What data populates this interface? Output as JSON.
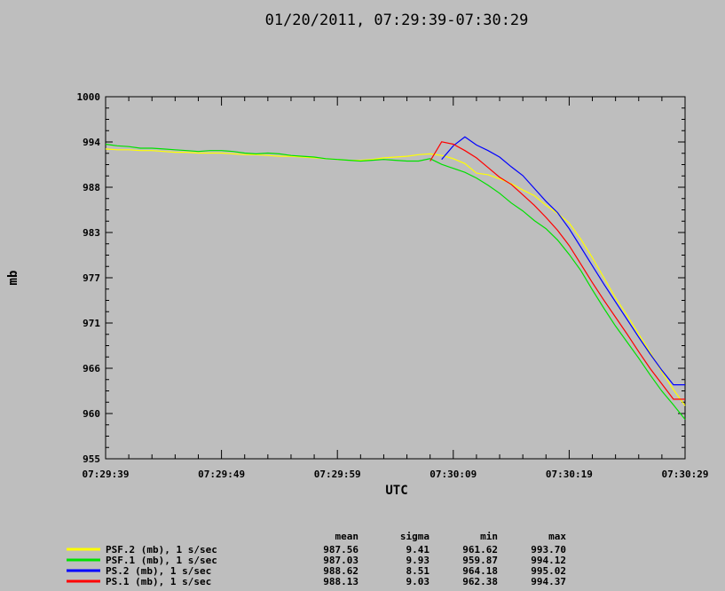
{
  "chart_data": {
    "type": "line",
    "title": "01/20/2011, 07:29:39-07:30:29",
    "xlabel": "UTC",
    "ylabel": "mb",
    "xlim": [
      "07:29:39",
      "07:30:29"
    ],
    "ylim": [
      955,
      1000
    ],
    "yticks": [
      "955",
      "960",
      "966",
      "971",
      "977",
      "983",
      "988",
      "994",
      "1000"
    ],
    "xticks": [
      "07:29:39",
      "07:29:49",
      "07:29:59",
      "07:30:09",
      "07:30:19",
      "07:30:29"
    ],
    "grid": false,
    "legend_position": "bottom-left",
    "stats_headers": [
      "mean",
      "sigma",
      "min",
      "max"
    ],
    "series": [
      {
        "name": "PSF.2 (mb), 1 s/sec",
        "color": "#ffff00",
        "stats": [
          "987.56",
          "9.41",
          "961.62",
          "993.70"
        ],
        "x": [
          "07:29:39",
          "07:29:40",
          "07:29:41",
          "07:29:42",
          "07:29:43",
          "07:29:44",
          "07:29:45",
          "07:29:46",
          "07:29:47",
          "07:29:48",
          "07:29:49",
          "07:29:50",
          "07:29:51",
          "07:29:52",
          "07:29:53",
          "07:29:54",
          "07:29:55",
          "07:29:56",
          "07:29:57",
          "07:29:58",
          "07:29:59",
          "07:30:00",
          "07:30:01",
          "07:30:02",
          "07:30:03",
          "07:30:04",
          "07:30:05",
          "07:30:06",
          "07:30:07",
          "07:30:08",
          "07:30:09",
          "07:30:10",
          "07:30:11",
          "07:30:12",
          "07:30:13",
          "07:30:14",
          "07:30:15",
          "07:30:16",
          "07:30:17",
          "07:30:18",
          "07:30:19",
          "07:30:20",
          "07:30:21",
          "07:30:22",
          "07:30:23",
          "07:30:24",
          "07:30:25",
          "07:30:26",
          "07:30:27",
          "07:30:28",
          "07:30:29"
        ],
        "values": [
          993.5,
          993.4,
          993.4,
          993.3,
          993.3,
          993.2,
          993.1,
          993.1,
          993.0,
          993.0,
          993.0,
          992.9,
          992.8,
          992.8,
          992.7,
          992.6,
          992.6,
          992.5,
          992.4,
          992.3,
          992.2,
          992.1,
          992.1,
          992.2,
          992.4,
          992.5,
          992.6,
          992.8,
          992.9,
          992.7,
          992.3,
          991.7,
          990.5,
          990.3,
          989.8,
          989.2,
          988.4,
          987.7,
          986.5,
          985.5,
          984.3,
          982.3,
          980.0,
          977.5,
          975.0,
          972.8,
          970.5,
          968.2,
          965.8,
          963.6,
          961.6
        ]
      },
      {
        "name": "PSF.1 (mb), 1 s/sec",
        "color": "#00e000",
        "stats": [
          "987.03",
          "9.93",
          "959.87",
          "994.12"
        ],
        "x": [
          "07:29:39",
          "07:29:40",
          "07:29:41",
          "07:29:42",
          "07:29:43",
          "07:29:44",
          "07:29:45",
          "07:29:46",
          "07:29:47",
          "07:29:48",
          "07:29:49",
          "07:29:50",
          "07:29:51",
          "07:29:52",
          "07:29:53",
          "07:29:54",
          "07:29:55",
          "07:29:56",
          "07:29:57",
          "07:29:58",
          "07:29:59",
          "07:30:00",
          "07:30:01",
          "07:30:02",
          "07:30:03",
          "07:30:04",
          "07:30:05",
          "07:30:06",
          "07:30:07",
          "07:30:08",
          "07:30:09",
          "07:30:10",
          "07:30:11",
          "07:30:12",
          "07:30:13",
          "07:30:14",
          "07:30:15",
          "07:30:16",
          "07:30:17",
          "07:30:18",
          "07:30:19",
          "07:30:20",
          "07:30:21",
          "07:30:22",
          "07:30:23",
          "07:30:24",
          "07:30:25",
          "07:30:26",
          "07:30:27",
          "07:30:28",
          "07:30:29"
        ],
        "values": [
          994.1,
          993.9,
          993.8,
          993.6,
          993.6,
          993.5,
          993.4,
          993.3,
          993.2,
          993.3,
          993.3,
          993.2,
          993.0,
          992.9,
          993.0,
          992.9,
          992.7,
          992.6,
          992.5,
          992.3,
          992.2,
          992.1,
          992.0,
          992.1,
          992.2,
          992.1,
          992.0,
          992.0,
          992.3,
          991.6,
          991.1,
          990.6,
          989.9,
          989.0,
          988.0,
          986.8,
          985.8,
          984.6,
          983.6,
          982.2,
          980.4,
          978.4,
          976.0,
          973.7,
          971.5,
          969.5,
          967.5,
          965.4,
          963.4,
          961.7,
          959.9
        ]
      },
      {
        "name": "PS.2 (mb), 1 s/sec",
        "color": "#0000ff",
        "stats": [
          "988.62",
          "8.51",
          "964.18",
          "995.02"
        ],
        "x": [
          "07:30:08",
          "07:30:09",
          "07:30:10",
          "07:30:11",
          "07:30:12",
          "07:30:13",
          "07:30:14",
          "07:30:15",
          "07:30:16",
          "07:30:17",
          "07:30:18",
          "07:30:19",
          "07:30:20",
          "07:30:21",
          "07:30:22",
          "07:30:23",
          "07:30:24",
          "07:30:25",
          "07:30:26",
          "07:30:27",
          "07:30:28",
          "07:30:29"
        ],
        "values": [
          992.2,
          993.9,
          995.0,
          994.0,
          993.3,
          992.5,
          991.3,
          990.2,
          988.6,
          987.0,
          985.6,
          983.6,
          981.3,
          979.0,
          976.7,
          974.5,
          972.3,
          970.1,
          968.0,
          966.0,
          964.2,
          964.2
        ]
      },
      {
        "name": "PS.1 (mb), 1 s/sec",
        "color": "#ff0000",
        "stats": [
          "988.13",
          "9.03",
          "962.38",
          "994.37"
        ],
        "x": [
          "07:30:07",
          "07:30:08",
          "07:30:09",
          "07:30:10",
          "07:30:11",
          "07:30:12",
          "07:30:13",
          "07:30:14",
          "07:30:15",
          "07:30:16",
          "07:30:17",
          "07:30:18",
          "07:30:19",
          "07:30:20",
          "07:30:21",
          "07:30:22",
          "07:30:23",
          "07:30:24",
          "07:30:25",
          "07:30:26",
          "07:30:27",
          "07:30:28",
          "07:30:29"
        ],
        "values": [
          992.0,
          994.4,
          994.1,
          993.3,
          992.4,
          991.2,
          990.0,
          989.1,
          987.8,
          986.5,
          985.0,
          983.4,
          981.5,
          979.2,
          976.9,
          974.7,
          972.6,
          970.5,
          968.3,
          966.2,
          964.3,
          962.4,
          962.4
        ]
      }
    ]
  }
}
